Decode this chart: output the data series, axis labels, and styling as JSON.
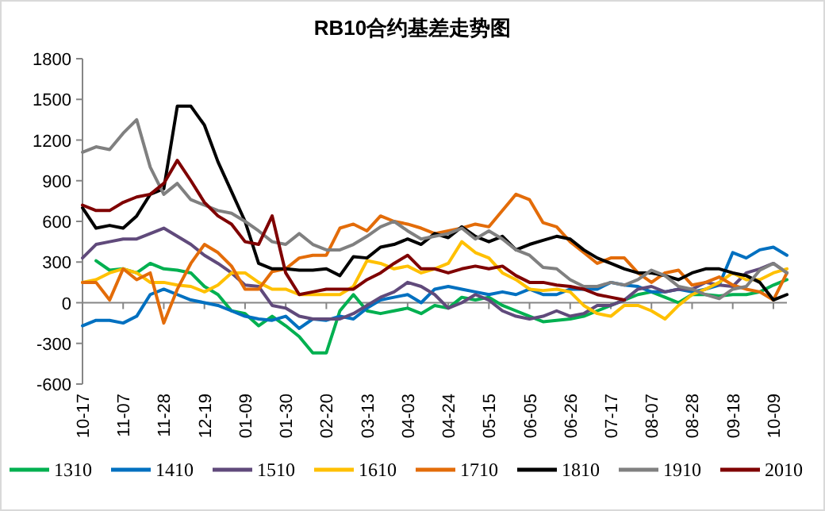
{
  "chart_data": {
    "type": "line",
    "title": "RB10合约基差走势图",
    "categories": [
      "10-17",
      null,
      null,
      "11-07",
      null,
      null,
      "11-28",
      null,
      null,
      "12-19",
      null,
      null,
      "01-09",
      null,
      null,
      "01-30",
      null,
      null,
      "02-20",
      null,
      null,
      "03-13",
      null,
      null,
      "04-03",
      null,
      null,
      "04-24",
      null,
      null,
      "05-15",
      null,
      null,
      "06-05",
      null,
      null,
      "06-26",
      null,
      null,
      "07-17",
      null,
      null,
      "08-07",
      null,
      null,
      "08-28",
      null,
      null,
      "09-18",
      null,
      null,
      "10-09",
      null
    ],
    "ylim": [
      -600,
      1800
    ],
    "yticks": [
      -600,
      -300,
      0,
      300,
      600,
      900,
      1200,
      1500,
      1800
    ],
    "legend": "bottom",
    "series": [
      {
        "name": "1310",
        "color": "#00b050",
        "values": [
          null,
          310,
          240,
          250,
          220,
          290,
          250,
          240,
          220,
          120,
          60,
          -60,
          -80,
          -170,
          -100,
          -170,
          -250,
          -370,
          -370,
          -60,
          60,
          -60,
          -80,
          -60,
          -40,
          -80,
          -20,
          -40,
          40,
          20,
          40,
          -20,
          -60,
          -100,
          -140,
          -130,
          -120,
          -100,
          -60,
          -20,
          20,
          60,
          80,
          40,
          0,
          60,
          60,
          50,
          60,
          60,
          80,
          130,
          170
        ]
      },
      {
        "name": "1410",
        "color": "#0070c0",
        "values": [
          -170,
          -130,
          -130,
          -150,
          -100,
          60,
          100,
          60,
          20,
          0,
          -20,
          -60,
          -100,
          -120,
          -130,
          -100,
          -190,
          -120,
          -130,
          -100,
          -120,
          -40,
          20,
          40,
          60,
          0,
          100,
          120,
          100,
          80,
          60,
          80,
          60,
          100,
          60,
          60,
          100,
          100,
          100,
          150,
          130,
          120,
          80,
          80,
          100,
          80,
          100,
          130,
          370,
          330,
          390,
          410,
          350
        ]
      },
      {
        "name": "1510",
        "color": "#604a7b",
        "values": [
          330,
          430,
          450,
          470,
          470,
          510,
          550,
          490,
          430,
          350,
          290,
          220,
          130,
          120,
          -20,
          -40,
          -100,
          -120,
          -120,
          -120,
          -80,
          -20,
          40,
          80,
          150,
          120,
          60,
          -40,
          0,
          60,
          20,
          -60,
          -100,
          -120,
          -100,
          -60,
          -100,
          -80,
          -20,
          -20,
          20,
          100,
          120,
          80,
          100,
          100,
          150,
          130,
          120,
          220,
          250,
          290,
          220
        ]
      },
      {
        "name": "1610",
        "color": "#ffc000",
        "values": [
          150,
          170,
          220,
          250,
          220,
          150,
          150,
          130,
          120,
          80,
          130,
          220,
          220,
          150,
          100,
          100,
          60,
          60,
          60,
          60,
          120,
          310,
          290,
          250,
          270,
          220,
          250,
          290,
          450,
          370,
          330,
          220,
          170,
          100,
          90,
          100,
          80,
          -20,
          -80,
          -100,
          -20,
          -20,
          -60,
          -120,
          -20,
          60,
          100,
          150,
          220,
          170,
          170,
          220,
          250
        ]
      },
      {
        "name": "1710",
        "color": "#e36c09",
        "values": [
          150,
          150,
          20,
          250,
          170,
          220,
          -150,
          100,
          290,
          430,
          370,
          270,
          100,
          100,
          230,
          250,
          330,
          350,
          350,
          550,
          580,
          530,
          640,
          600,
          580,
          550,
          510,
          530,
          550,
          580,
          560,
          680,
          800,
          760,
          590,
          560,
          450,
          370,
          290,
          330,
          330,
          220,
          150,
          220,
          240,
          130,
          150,
          190,
          130,
          100,
          80,
          20,
          220
        ]
      },
      {
        "name": "1810",
        "color": "#000000",
        "values": [
          700,
          550,
          570,
          550,
          640,
          800,
          840,
          1450,
          1450,
          1310,
          1040,
          820,
          600,
          290,
          250,
          250,
          240,
          240,
          250,
          200,
          340,
          330,
          410,
          430,
          470,
          430,
          510,
          480,
          560,
          490,
          450,
          490,
          390,
          430,
          460,
          490,
          470,
          390,
          330,
          290,
          250,
          220,
          220,
          200,
          170,
          220,
          250,
          250,
          220,
          200,
          150,
          20,
          60
        ]
      },
      {
        "name": "1910",
        "color": "#808080",
        "values": [
          1110,
          1150,
          1130,
          1250,
          1350,
          1000,
          800,
          880,
          760,
          720,
          680,
          660,
          600,
          530,
          450,
          430,
          510,
          430,
          390,
          390,
          430,
          490,
          560,
          600,
          530,
          470,
          490,
          510,
          550,
          470,
          530,
          470,
          390,
          350,
          260,
          250,
          170,
          120,
          120,
          150,
          130,
          170,
          240,
          200,
          120,
          100,
          60,
          30,
          100,
          120,
          240,
          290,
          220
        ]
      },
      {
        "name": "2010",
        "color": "#7f0000",
        "values": [
          720,
          680,
          680,
          740,
          780,
          800,
          880,
          1050,
          900,
          740,
          640,
          580,
          450,
          430,
          640,
          220,
          60,
          80,
          100,
          100,
          100,
          170,
          220,
          290,
          350,
          250,
          250,
          220,
          250,
          270,
          250,
          270,
          200,
          150,
          150,
          130,
          120,
          100,
          60,
          40,
          20,
          null,
          null,
          null,
          null,
          null,
          null,
          null,
          null,
          null,
          null,
          null,
          null
        ]
      }
    ]
  }
}
